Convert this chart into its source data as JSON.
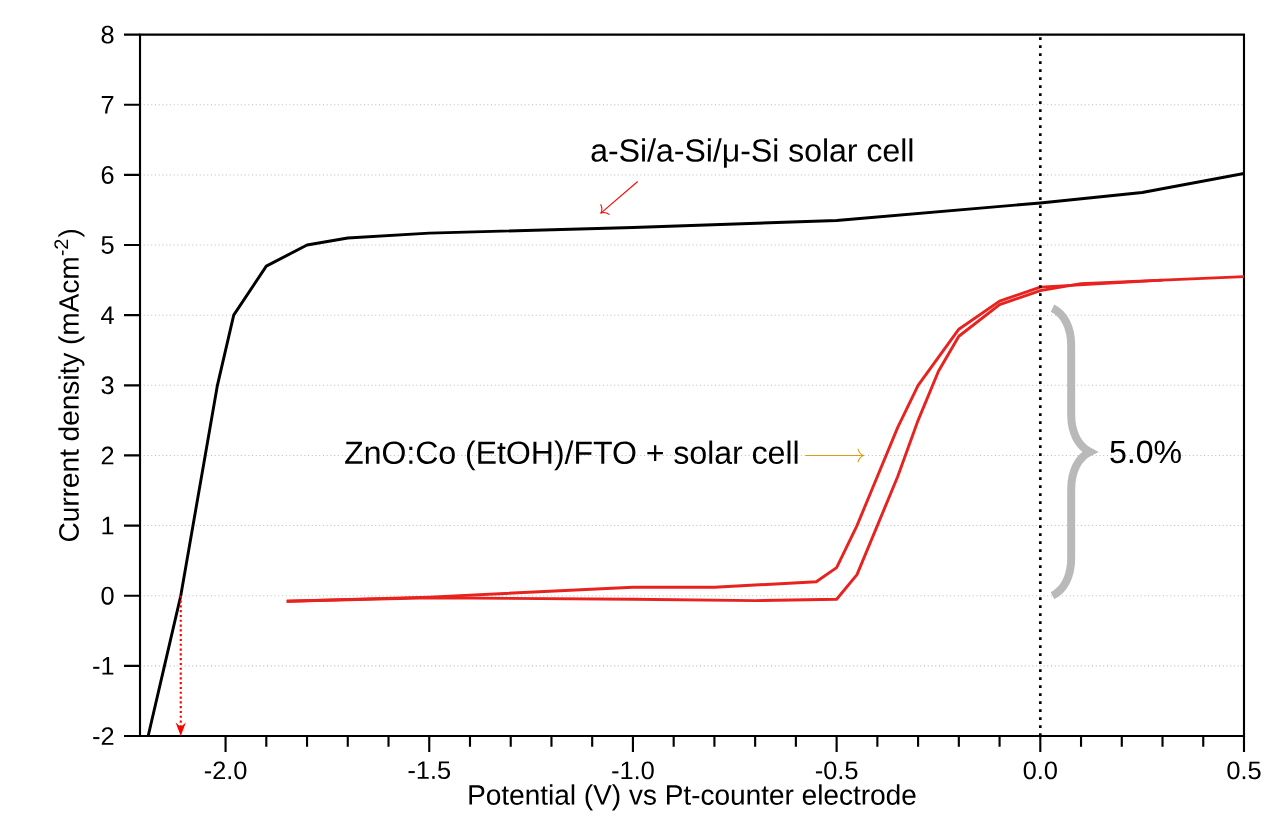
{
  "chart_data": {
    "type": "line",
    "xlabel": "Potential (V) vs Pt-counter electrode",
    "ylabel": "Current density (mAcm$^{-2}$)",
    "xlim": [
      -2.21,
      0.5
    ],
    "ylim": [
      -2,
      8
    ],
    "xticks": [
      {
        "value": -2,
        "label": "-2.0"
      },
      {
        "value": -1.5,
        "label": "-1.5"
      },
      {
        "value": -1,
        "label": "-1.0"
      },
      {
        "value": -0.5,
        "label": "-0.5"
      },
      {
        "value": 0,
        "label": "0.0"
      },
      {
        "value": 0.5,
        "label": "0.5"
      }
    ],
    "yticks": [
      -2,
      -1,
      0,
      1,
      2,
      3,
      4,
      5,
      6,
      7,
      8
    ],
    "grid": "y",
    "line_style": "solid",
    "series": [
      {
        "color": "#000000",
        "x": [
          -2.19,
          -2.15,
          -2.11,
          -2.08,
          -2.05,
          -2.02,
          -1.98,
          -1.9,
          -1.8,
          -1.7,
          -1.5,
          -1.0,
          -0.5,
          0,
          0.25,
          0.5
        ],
        "values": [
          -2,
          -1,
          0,
          1,
          2,
          3,
          4,
          4.7,
          5.0,
          5.1,
          5.17,
          5.25,
          5.35,
          5.6,
          5.75,
          6.02
        ]
      },
      {
        "color": "#e8231f",
        "x": [
          -1.85,
          -1.5,
          -1.0,
          -0.7,
          -0.5,
          -0.45,
          -0.4,
          -0.35,
          -0.3,
          -0.25,
          -0.2,
          -0.1,
          0,
          0.1,
          0.3,
          0.5
        ],
        "values": [
          -0.08,
          -0.03,
          -0.05,
          -0.07,
          -0.05,
          0.3,
          1.0,
          1.7,
          2.5,
          3.2,
          3.7,
          4.15,
          4.35,
          4.45,
          4.5,
          4.55
        ]
      },
      {
        "color": "#e8231f",
        "x": [
          -1.85,
          -1.5,
          -1.0,
          -0.8,
          -0.55,
          -0.5,
          -0.45,
          -0.4,
          -0.35,
          -0.3,
          -0.2,
          -0.1,
          0,
          0.3
        ],
        "values": [
          -0.08,
          -0.02,
          0.12,
          0.12,
          0.2,
          0.4,
          1.0,
          1.7,
          2.4,
          3.0,
          3.8,
          4.2,
          4.4,
          4.5
        ]
      }
    ],
    "ref_lines": [
      {
        "axis": "x",
        "value": 0,
        "color": "#000000",
        "line_style": "dotted"
      }
    ],
    "annotations": [
      "a-Si/a-Si/μ-Si solar cell",
      "ZnO:Co (EtOH)/FTO + solar cell",
      "5.0%"
    ]
  }
}
